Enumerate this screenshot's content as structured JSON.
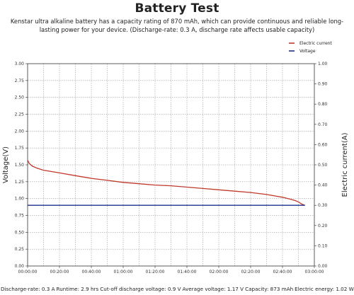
{
  "title": "Battery Test",
  "description": "Kenstar ultra alkaline battery has a capacity rating of 870 mAh, which can provide continuous and reliable long-lasting power for your device. (Discharge-rate: 0.3 A, discharge rate affects usable capacity)",
  "footer": [
    "Discharge-rate: 0.3 A",
    "Runtime: 2.9 hrs",
    "Cut-off discharge voltage: 0.9 V",
    "Average voltage: 1.17 V",
    "Capacity: 873 mAh",
    "Electric energy: 1.02 Wh"
  ],
  "chart_data": {
    "type": "line",
    "ylabel": "Voltage(V)",
    "y2label": "Electric current(A)",
    "xlabel": "",
    "grid": true,
    "legend_position": "top-right",
    "ylim": [
      0,
      3
    ],
    "y2lim": [
      0,
      1
    ],
    "xlim_minutes": [
      0,
      180
    ],
    "x_ticks": [
      "00:00:00",
      "00:20:00",
      "00:40:00",
      "01:00:00",
      "01:20:00",
      "01:40:00",
      "02:00:00",
      "02:20:00",
      "02:40:00",
      "03:00:00"
    ],
    "y_ticks": [
      "0.00",
      "0.25",
      "0.50",
      "0.75",
      "1.00",
      "1.25",
      "1.50",
      "1.75",
      "2.00",
      "2.25",
      "2.50",
      "2.75",
      "3.00"
    ],
    "y2_ticks": [
      "0.00",
      "0.10",
      "0.20",
      "0.30",
      "0.40",
      "0.50",
      "0.60",
      "0.70",
      "0.80",
      "0.90",
      "1.00"
    ],
    "series": [
      {
        "name": "Electric current",
        "axis": "left",
        "color": "#c0392b",
        "x_minutes": [
          0,
          1,
          3,
          6,
          10,
          15,
          20,
          30,
          40,
          50,
          60,
          70,
          80,
          90,
          100,
          110,
          120,
          130,
          140,
          150,
          155,
          160,
          165,
          168,
          170,
          172,
          174
        ],
        "values": [
          1.57,
          1.52,
          1.48,
          1.45,
          1.42,
          1.4,
          1.38,
          1.34,
          1.3,
          1.27,
          1.24,
          1.22,
          1.2,
          1.19,
          1.17,
          1.15,
          1.13,
          1.11,
          1.09,
          1.06,
          1.04,
          1.02,
          0.99,
          0.97,
          0.95,
          0.92,
          0.9
        ]
      },
      {
        "name": "Voltage",
        "axis": "right",
        "color": "#1f2f8f",
        "x_minutes": [
          0,
          174
        ],
        "values": [
          0.3,
          0.3
        ]
      }
    ]
  }
}
